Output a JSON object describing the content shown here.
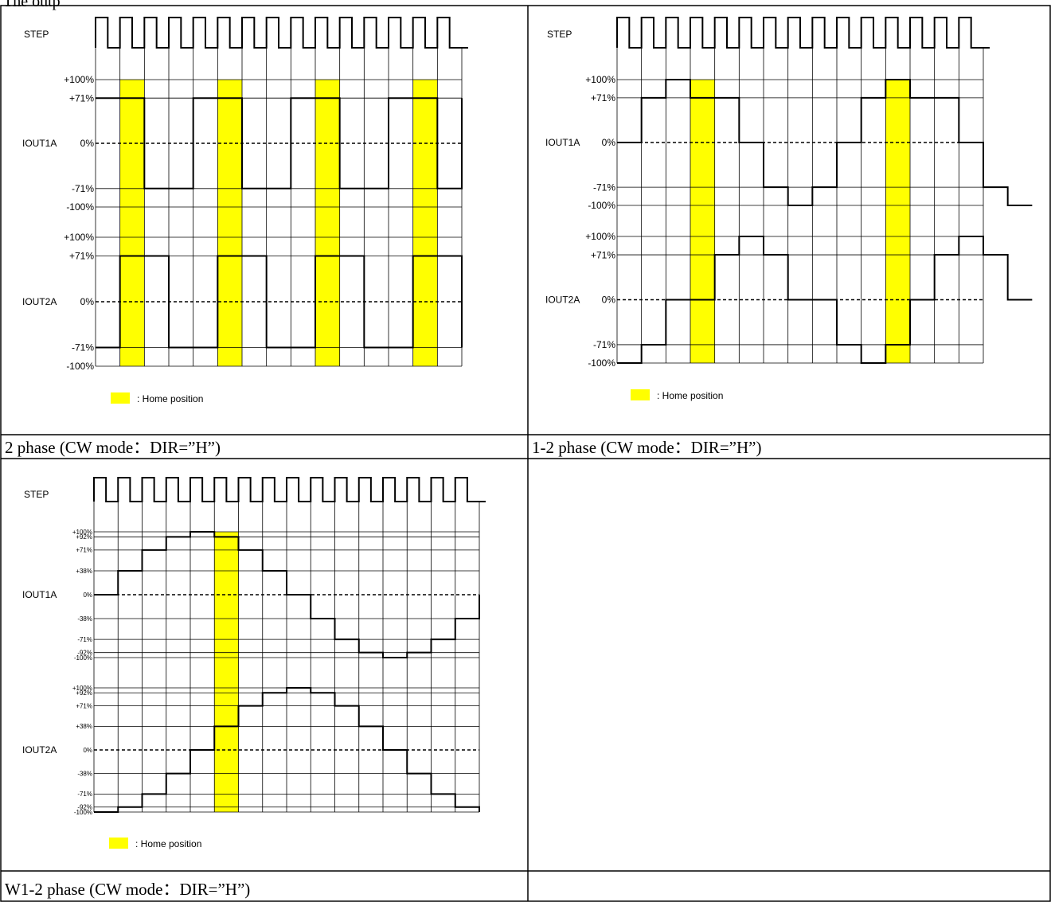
{
  "header_fragment": "The outp",
  "legend_label": ": Home position",
  "step_label": "STEP",
  "colors": {
    "home": "#ffff00",
    "line": "#000000",
    "grid": "#000000"
  },
  "panels": [
    {
      "id": "p1",
      "caption": "2 phase (CW mode：DIR=”H”)",
      "channels": [
        {
          "name": "IOUT1A",
          "ticks": [
            "+100%",
            "+71%",
            "0%",
            "-71%",
            "-100%"
          ],
          "steps": [
            71,
            71,
            -71,
            -71,
            71,
            71,
            -71,
            -71,
            71,
            71,
            -71,
            -71,
            71,
            71,
            -71
          ],
          "home": [
            1,
            5,
            9,
            13
          ]
        },
        {
          "name": "IOUT2A",
          "ticks": [
            "+100%",
            "+71%",
            "0%",
            "-71%",
            "-100%"
          ],
          "steps": [
            -71,
            71,
            71,
            -71,
            -71,
            71,
            71,
            -71,
            -71,
            71,
            71,
            -71,
            -71,
            71,
            71
          ],
          "home": [
            1,
            5,
            9,
            13
          ]
        }
      ]
    },
    {
      "id": "p2",
      "caption": "1-2 phase (CW mode：DIR=”H”)",
      "channels": [
        {
          "name": "IOUT1A",
          "ticks": [
            "+100%",
            "+71%",
            "0%",
            "-71%",
            "-100%"
          ],
          "steps": [
            0,
            71,
            100,
            71,
            71,
            0,
            -71,
            -100,
            -71,
            0,
            71,
            100,
            71,
            71,
            0,
            -71,
            -100
          ],
          "home": [
            3,
            11
          ]
        },
        {
          "name": "IOUT2A",
          "ticks": [
            "+100%",
            "+71%",
            "0%",
            "-71%",
            "-100%"
          ],
          "steps": [
            -100,
            -71,
            0,
            0,
            71,
            100,
            71,
            0,
            0,
            -71,
            -100,
            -71,
            0,
            71,
            100,
            71,
            0
          ],
          "home": [
            3,
            11
          ]
        }
      ]
    },
    {
      "id": "p3",
      "caption": "W1-2 phase (CW mode：DIR=”H”)",
      "channels": [
        {
          "name": "IOUT1A",
          "ticks": [
            "+100%",
            "+92%",
            "+71%",
            "+38%",
            "0%",
            "-38%",
            "-71%",
            "-92%",
            "-100%"
          ],
          "steps": [
            0,
            38,
            71,
            92,
            100,
            92,
            71,
            38,
            0,
            -38,
            -71,
            -92,
            -100,
            -92,
            -71,
            -38
          ],
          "home": [
            5
          ]
        },
        {
          "name": "IOUT2A",
          "ticks": [
            "+100%",
            "+92%",
            "+71%",
            "+38%",
            "0%",
            "-38%",
            "-71%",
            "-92%",
            "-100%"
          ],
          "steps": [
            -100,
            -92,
            -71,
            -38,
            0,
            38,
            71,
            92,
            100,
            92,
            71,
            38,
            0,
            -38,
            -71,
            -92
          ],
          "home": [
            5
          ]
        }
      ]
    }
  ]
}
